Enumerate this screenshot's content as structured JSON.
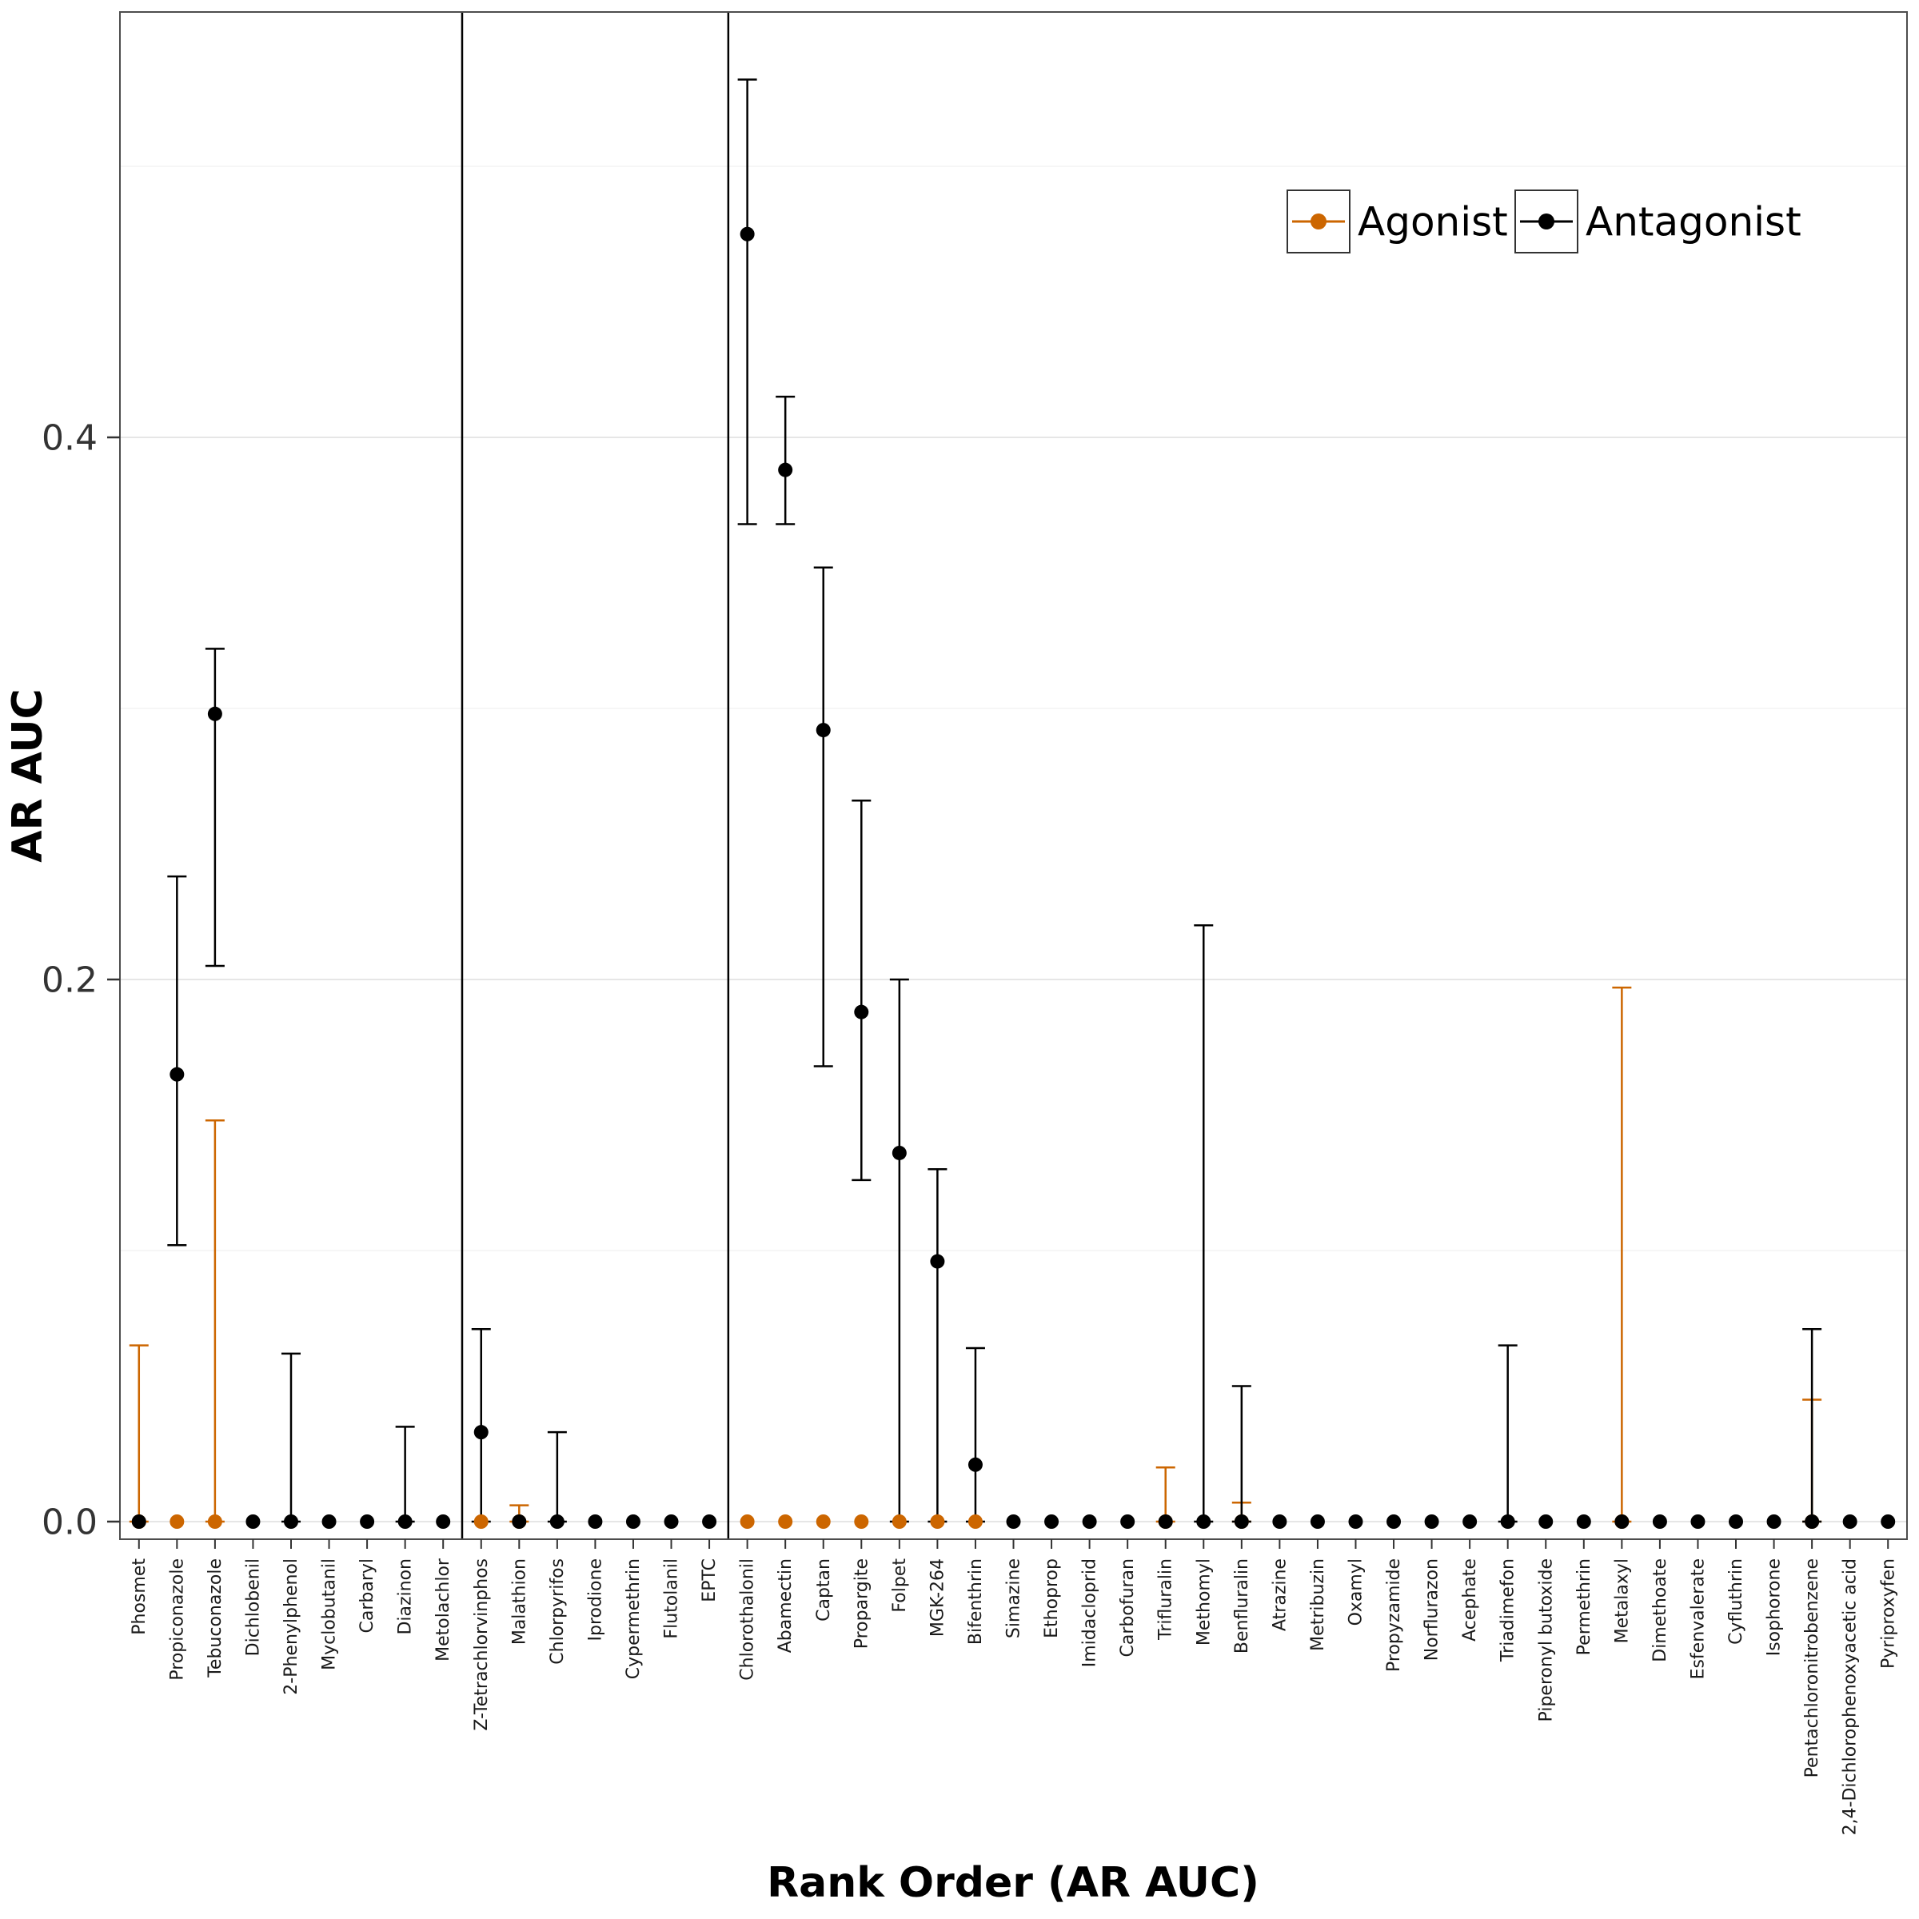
{
  "colors": {
    "agonist": "#CC6600",
    "antagonist": "#000000",
    "grid_major": "#e6e6e6",
    "grid_minor": "#f3f3f3",
    "panel_border": "#4d4d4d",
    "axis_text": "#333333"
  },
  "chart_data": {
    "type": "pointrange",
    "title": "",
    "xlabel": "Rank Order (AR AUC)",
    "ylabel": "AR AUC",
    "ylim": [
      -0.007,
      0.56
    ],
    "grid": "horizontal-major-and-minor",
    "x_tick_label_rotation": 90,
    "y_ticks": [
      {
        "value": 0.0,
        "label": "0.0"
      },
      {
        "value": 0.2,
        "label": "0.2"
      },
      {
        "value": 0.4,
        "label": "0.4"
      }
    ],
    "y_minor_gridlines": [
      0.1,
      0.3,
      0.5
    ],
    "legend": {
      "position": "top-right-inside",
      "items": [
        {
          "name": "Agonist",
          "color": "#CC6600"
        },
        {
          "name": "Antagonist",
          "color": "#000000"
        }
      ]
    },
    "group_dividers_after": [
      "Metolachlor",
      "EPTC"
    ],
    "categories": [
      "Phosmet",
      "Propiconazole",
      "Tebuconazole",
      "Dichlobenil",
      "2-Phenylphenol",
      "Myclobutanil",
      "Carbaryl",
      "Diazinon",
      "Metolachlor",
      "Z-Tetrachlorvinphos",
      "Malathion",
      "Chlorpyrifos",
      "Iprodione",
      "Cypermethrin",
      "Flutolanil",
      "EPTC",
      "Chlorothalonil",
      "Abamectin",
      "Captan",
      "Propargite",
      "Folpet",
      "MGK-264",
      "Bifenthrin",
      "Simazine",
      "Ethoprop",
      "Imidacloprid",
      "Carbofuran",
      "Trifluralin",
      "Methomyl",
      "Benfluralin",
      "Atrazine",
      "Metribuzin",
      "Oxamyl",
      "Propyzamide",
      "Norflurazon",
      "Acephate",
      "Triadimefon",
      "Piperonyl butoxide",
      "Permethrin",
      "Metalaxyl",
      "Dimethoate",
      "Esfenvalerate",
      "Cyfluthrin",
      "Isophorone",
      "Pentachloronitrobenzene",
      "2,4-Dichlorophenoxyacetic acid",
      "Pyriproxyfen"
    ],
    "points": [
      {
        "chemical": "Phosmet",
        "agonist": {
          "y": 0,
          "lo": 0,
          "hi": 0.065
        },
        "antagonist": {
          "y": 0
        }
      },
      {
        "chemical": "Propiconazole",
        "agonist": {
          "y": 0
        },
        "antagonist": {
          "y": 0.165,
          "lo": 0.102,
          "hi": 0.238
        }
      },
      {
        "chemical": "Tebuconazole",
        "agonist": {
          "y": 0,
          "lo": 0,
          "hi": 0.148
        },
        "antagonist": {
          "y": 0.298,
          "lo": 0.205,
          "hi": 0.322
        }
      },
      {
        "chemical": "Dichlobenil",
        "antagonist": {
          "y": 0
        }
      },
      {
        "chemical": "2-Phenylphenol",
        "antagonist": {
          "y": 0,
          "lo": 0,
          "hi": 0.062
        }
      },
      {
        "chemical": "Myclobutanil",
        "antagonist": {
          "y": 0
        }
      },
      {
        "chemical": "Carbaryl",
        "antagonist": {
          "y": 0
        }
      },
      {
        "chemical": "Diazinon",
        "antagonist": {
          "y": 0,
          "lo": 0,
          "hi": 0.035
        }
      },
      {
        "chemical": "Metolachlor",
        "antagonist": {
          "y": 0
        }
      },
      {
        "chemical": "Z-Tetrachlorvinphos",
        "agonist": {
          "y": 0
        },
        "antagonist": {
          "y": 0.033,
          "lo": 0,
          "hi": 0.071
        }
      },
      {
        "chemical": "Malathion",
        "agonist": {
          "y": 0,
          "lo": 0,
          "hi": 0.006
        },
        "antagonist": {
          "y": 0
        }
      },
      {
        "chemical": "Chlorpyrifos",
        "antagonist": {
          "y": 0,
          "lo": 0,
          "hi": 0.033
        }
      },
      {
        "chemical": "Iprodione",
        "antagonist": {
          "y": 0
        }
      },
      {
        "chemical": "Cypermethrin",
        "antagonist": {
          "y": 0
        }
      },
      {
        "chemical": "Flutolanil",
        "antagonist": {
          "y": 0
        }
      },
      {
        "chemical": "EPTC",
        "antagonist": {
          "y": 0
        }
      },
      {
        "chemical": "Chlorothalonil",
        "agonist": {
          "y": 0
        },
        "antagonist": {
          "y": 0.475,
          "lo": 0.368,
          "hi": 0.532
        }
      },
      {
        "chemical": "Abamectin",
        "agonist": {
          "y": 0
        },
        "antagonist": {
          "y": 0.388,
          "lo": 0.368,
          "hi": 0.415
        }
      },
      {
        "chemical": "Captan",
        "agonist": {
          "y": 0
        },
        "antagonist": {
          "y": 0.292,
          "lo": 0.168,
          "hi": 0.352
        }
      },
      {
        "chemical": "Propargite",
        "agonist": {
          "y": 0
        },
        "antagonist": {
          "y": 0.188,
          "lo": 0.126,
          "hi": 0.266
        }
      },
      {
        "chemical": "Folpet",
        "agonist": {
          "y": 0
        },
        "antagonist": {
          "y": 0.136,
          "lo": 0,
          "hi": 0.2
        }
      },
      {
        "chemical": "MGK-264",
        "agonist": {
          "y": 0
        },
        "antagonist": {
          "y": 0.096,
          "lo": 0,
          "hi": 0.13
        }
      },
      {
        "chemical": "Bifenthrin",
        "agonist": {
          "y": 0
        },
        "antagonist": {
          "y": 0.021,
          "lo": 0,
          "hi": 0.064
        }
      },
      {
        "chemical": "Simazine",
        "antagonist": {
          "y": 0
        }
      },
      {
        "chemical": "Ethoprop",
        "antagonist": {
          "y": 0
        }
      },
      {
        "chemical": "Imidacloprid",
        "antagonist": {
          "y": 0
        }
      },
      {
        "chemical": "Carbofuran",
        "antagonist": {
          "y": 0
        }
      },
      {
        "chemical": "Trifluralin",
        "agonist": {
          "y": 0,
          "lo": 0,
          "hi": 0.02
        },
        "antagonist": {
          "y": 0
        }
      },
      {
        "chemical": "Methomyl",
        "antagonist": {
          "y": 0,
          "lo": 0,
          "hi": 0.22
        }
      },
      {
        "chemical": "Benfluralin",
        "agonist": {
          "y": 0,
          "lo": 0,
          "hi": 0.007
        },
        "antagonist": {
          "y": 0,
          "lo": 0,
          "hi": 0.05
        }
      },
      {
        "chemical": "Atrazine",
        "antagonist": {
          "y": 0
        }
      },
      {
        "chemical": "Metribuzin",
        "antagonist": {
          "y": 0
        }
      },
      {
        "chemical": "Oxamyl",
        "antagonist": {
          "y": 0
        }
      },
      {
        "chemical": "Propyzamide",
        "antagonist": {
          "y": 0
        }
      },
      {
        "chemical": "Norflurazon",
        "antagonist": {
          "y": 0
        }
      },
      {
        "chemical": "Acephate",
        "antagonist": {
          "y": 0
        }
      },
      {
        "chemical": "Triadimefon",
        "antagonist": {
          "y": 0,
          "lo": 0,
          "hi": 0.065
        }
      },
      {
        "chemical": "Piperonyl butoxide",
        "antagonist": {
          "y": 0
        }
      },
      {
        "chemical": "Permethrin",
        "antagonist": {
          "y": 0
        }
      },
      {
        "chemical": "Metalaxyl",
        "agonist": {
          "y": 0,
          "lo": 0,
          "hi": 0.197
        },
        "antagonist": {
          "y": 0
        }
      },
      {
        "chemical": "Dimethoate",
        "antagonist": {
          "y": 0
        }
      },
      {
        "chemical": "Esfenvalerate",
        "antagonist": {
          "y": 0
        }
      },
      {
        "chemical": "Cyfluthrin",
        "antagonist": {
          "y": 0
        }
      },
      {
        "chemical": "Isophorone",
        "antagonist": {
          "y": 0
        }
      },
      {
        "chemical": "Pentachloronitrobenzene",
        "agonist": {
          "y": 0,
          "lo": 0,
          "hi": 0.045
        },
        "antagonist": {
          "y": 0,
          "lo": 0,
          "hi": 0.071
        }
      },
      {
        "chemical": "2,4-Dichlorophenoxyacetic acid",
        "antagonist": {
          "y": 0
        }
      },
      {
        "chemical": "Pyriproxyfen",
        "antagonist": {
          "y": 0
        }
      }
    ]
  }
}
